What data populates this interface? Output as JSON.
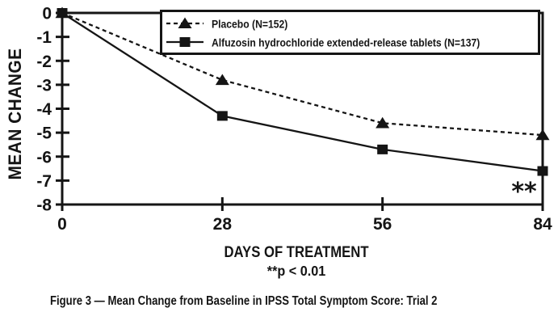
{
  "figure": {
    "caption": "Figure 3 — Mean Change from Baseline in IPSS Total Symptom Score: Trial 2"
  },
  "chart_data": {
    "type": "line",
    "xlabel": "DAYS OF TREATMENT",
    "ylabel": "MEAN CHANGE",
    "footnote": "**p < 0.01",
    "x": [
      0,
      28,
      56,
      84
    ],
    "xticks": [
      0,
      28,
      56,
      84
    ],
    "yticks": [
      0,
      -1,
      -2,
      -3,
      -4,
      -5,
      -6,
      -7,
      -8
    ],
    "xlim": [
      0,
      84
    ],
    "ylim": [
      -8,
      0
    ],
    "grid": false,
    "legend_position": "top-right-inside",
    "series": [
      {
        "name": "Placebo (N=152)",
        "marker": "triangle",
        "line": "dashed",
        "values": [
          0,
          -2.8,
          -4.6,
          -5.1
        ]
      },
      {
        "name": "Alfuzosin hydrochloride extended-release tablets (N=137)",
        "marker": "square",
        "line": "solid",
        "values": [
          0,
          -4.3,
          -5.7,
          -6.6
        ]
      }
    ],
    "annotations": [
      {
        "text": "**",
        "x": 80.5,
        "y": -7.5
      }
    ],
    "colors": {
      "ink": "#151515",
      "background": "#ffffff"
    }
  }
}
